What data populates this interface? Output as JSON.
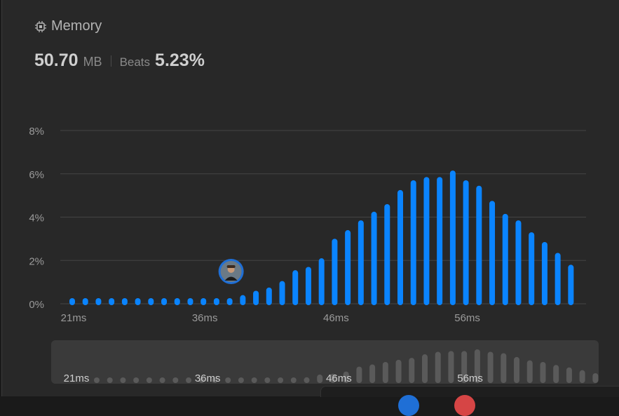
{
  "header": {
    "title": "Memory",
    "icon": "chip-icon"
  },
  "stats": {
    "value": "50.70",
    "unit": "MB",
    "beats_label": "Beats",
    "beats_value": "5.23%"
  },
  "colors": {
    "bar": "#0a84ff",
    "nav_bar": "#5a5a5a",
    "grid": "#444444",
    "axis_text": "#9a9a9a"
  },
  "chart_data": {
    "type": "bar",
    "title": "",
    "xlabel": "",
    "ylabel": "",
    "ylim": [
      0,
      8
    ],
    "y_ticks": [
      "0%",
      "2%",
      "4%",
      "6%",
      "8%"
    ],
    "x_tick_labels": [
      "21ms",
      "36ms",
      "46ms",
      "56ms"
    ],
    "x_tick_bar_index": [
      0,
      10,
      20,
      30
    ],
    "grid": true,
    "highlight_bar_index": 12,
    "values": [
      0.1,
      0.1,
      0.1,
      0.1,
      0.1,
      0.1,
      0.1,
      0.1,
      0.1,
      0.1,
      0.1,
      0.1,
      0.25,
      0.4,
      0.6,
      0.75,
      1.05,
      1.55,
      1.7,
      2.1,
      3.0,
      3.4,
      3.85,
      4.25,
      4.6,
      5.25,
      5.7,
      5.85,
      5.85,
      6.15,
      5.7,
      5.45,
      4.75,
      4.15,
      3.85,
      3.3,
      2.85,
      2.35,
      1.8
    ]
  }
}
